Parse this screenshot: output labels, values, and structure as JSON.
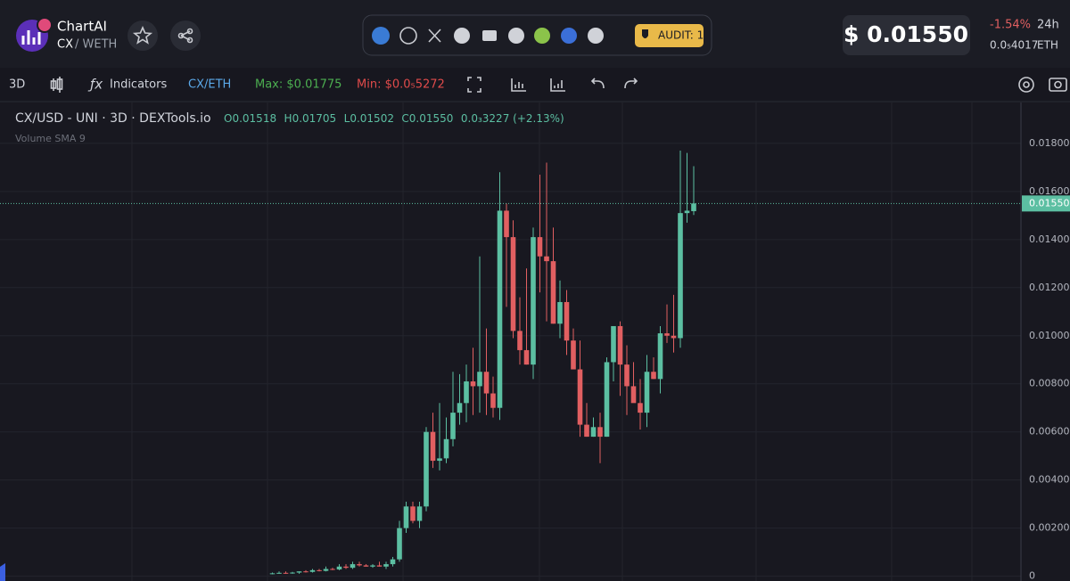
{
  "header": {
    "app_name": "ChartAI",
    "base": "CX",
    "quote": "/ WETH",
    "audit": "AUDIT: 1",
    "price": "$ 0.01550",
    "change": "-1.54%",
    "period": "24h",
    "eth_price": "0.0₅4017",
    "eth_unit": "ETH"
  },
  "toolbar": {
    "interval": "3D",
    "indicators": "Indicators",
    "pair": "CX/ETH",
    "max": "Max: $0.01775",
    "min": "Min: $0.0₅5272"
  },
  "legend": {
    "symbol": "CX/USD - UNI · 3D · DEXTools.io",
    "open": "O0.01518",
    "high": "H0.01705",
    "low": "L0.01502",
    "close": "C0.01550",
    "change": "0.0₃3227 (+2.13%)",
    "volume": "Volume SMA 9"
  },
  "chart_data": {
    "type": "candlestick",
    "up_color": "#5cbfa2",
    "down_color": "#e15f61",
    "grid": true,
    "ylim": [
      -0.0002,
      0.0197
    ],
    "yticks": [
      0,
      {
        "value": 0.002,
        "label": "0.002000"
      },
      {
        "value": 0.004,
        "label": "0.004000"
      },
      {
        "value": 0.006,
        "label": "0.006000"
      },
      {
        "value": 0.008,
        "label": "0.008000"
      },
      {
        "value": 0.01,
        "label": "0.01000"
      },
      {
        "value": 0.012,
        "label": "0.01200"
      },
      {
        "value": 0.014,
        "label": "0.01400"
      },
      {
        "value": 0.016,
        "label": "0.01600"
      },
      {
        "value": 0.018,
        "label": "0.01800"
      }
    ],
    "last_price": {
      "value": 0.0155,
      "label": "0.01550"
    },
    "open": [
      0.0001,
      0.00012,
      0.00014,
      0.00012,
      0.00015,
      0.0002,
      0.00018,
      0.00025,
      0.00022,
      0.0003,
      0.00028,
      0.0004,
      0.00035,
      0.0005,
      0.00045,
      0.0004,
      0.00045,
      0.0004,
      0.0005,
      0.0007,
      0.002,
      0.0029,
      0.0023,
      0.0029,
      0.006,
      0.0048,
      0.0049,
      0.0057,
      0.0068,
      0.0072,
      0.0081,
      0.0079,
      0.0085,
      0.0076,
      0.007,
      0.0152,
      0.0141,
      0.0102,
      0.0094,
      0.0088,
      0.0141,
      0.0133,
      0.0131,
      0.0105,
      0.0114,
      0.0098,
      0.0086,
      0.0063,
      0.0058,
      0.0062,
      0.0058,
      0.0089,
      0.0104,
      0.0088,
      0.0079,
      0.0072,
      0.0068,
      0.0085,
      0.0082,
      0.0101,
      0.01,
      0.0099,
      0.0151,
      0.01518
    ],
    "high": [
      0.00015,
      0.0002,
      0.0002,
      0.00018,
      0.0002,
      0.00025,
      0.0003,
      0.0003,
      0.0004,
      0.00035,
      0.0005,
      0.0005,
      0.0006,
      0.0006,
      0.0005,
      0.0005,
      0.0006,
      0.0006,
      0.0008,
      0.0023,
      0.0031,
      0.0031,
      0.0031,
      0.0062,
      0.0068,
      0.0072,
      0.0066,
      0.0085,
      0.0084,
      0.0088,
      0.0095,
      0.0133,
      0.0103,
      0.0083,
      0.0168,
      0.0155,
      0.0148,
      0.0116,
      0.0128,
      0.0145,
      0.0167,
      0.0172,
      0.0145,
      0.0123,
      0.0119,
      0.0103,
      0.0098,
      0.0072,
      0.0066,
      0.0068,
      0.0091,
      0.0104,
      0.0106,
      0.0096,
      0.0089,
      0.0082,
      0.0092,
      0.0091,
      0.0104,
      0.0113,
      0.0117,
      0.0177,
      0.0176,
      0.01705
    ],
    "low": [
      8e-05,
      0.0001,
      0.0001,
      0.0001,
      0.0001,
      0.00015,
      0.00015,
      0.0002,
      0.0002,
      0.00025,
      0.00025,
      0.0003,
      0.0003,
      0.0004,
      0.0004,
      0.00035,
      0.0004,
      0.0003,
      0.0004,
      0.0006,
      0.0018,
      0.0022,
      0.002,
      0.0027,
      0.0045,
      0.0044,
      0.0047,
      0.0054,
      0.0063,
      0.0064,
      0.0067,
      0.0068,
      0.0067,
      0.0066,
      0.0065,
      0.0112,
      0.0099,
      0.0088,
      0.0088,
      0.0082,
      0.0118,
      0.0106,
      0.0105,
      0.0099,
      0.0092,
      0.0087,
      0.0058,
      0.0058,
      0.0058,
      0.0047,
      0.0058,
      0.0081,
      0.0075,
      0.0067,
      0.0073,
      0.0061,
      0.0062,
      0.0082,
      0.0076,
      0.0097,
      0.0093,
      0.0095,
      0.0147,
      0.01502
    ],
    "close": [
      0.00012,
      0.00014,
      0.00012,
      0.00015,
      0.0002,
      0.00018,
      0.00025,
      0.00022,
      0.0003,
      0.00028,
      0.0004,
      0.00035,
      0.0005,
      0.00045,
      0.0004,
      0.00045,
      0.0004,
      0.0005,
      0.0007,
      0.002,
      0.0029,
      0.0023,
      0.0029,
      0.006,
      0.0048,
      0.0049,
      0.0057,
      0.0068,
      0.0072,
      0.0081,
      0.0079,
      0.0085,
      0.0076,
      0.007,
      0.0152,
      0.0141,
      0.0102,
      0.0094,
      0.0088,
      0.0141,
      0.0133,
      0.0131,
      0.0105,
      0.0114,
      0.0098,
      0.0086,
      0.0063,
      0.0058,
      0.0062,
      0.0058,
      0.0089,
      0.0104,
      0.0088,
      0.0079,
      0.0072,
      0.0068,
      0.0085,
      0.0082,
      0.0101,
      0.01,
      0.0099,
      0.0151,
      0.0152,
      0.0155
    ]
  }
}
